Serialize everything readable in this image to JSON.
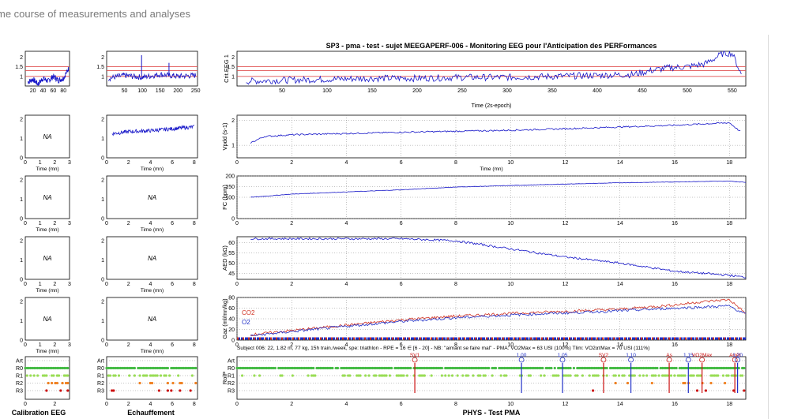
{
  "page_title": "me course of measurements and analyses",
  "figure_title": "SP3 - pma - test  -  sujet MEEGAPERF-006  -  Monitoring EEG pour l'Anticipation des PERFormances",
  "subject_line": "Subject 006: 22, 1.82 m, 77 kg, 15h train./week, spe: triathlon - RPE = 16 ∈ [6 - 20] - NB: \"aimant se faire mal\" - PMA: VO2Max = 63 USI (100%)  Tlim: VO2ατMax = 70 USI (111%)",
  "bottom_labels": {
    "left": "Calibration EEG",
    "middle": "Echauffement",
    "right": "PHYS - Test PMA"
  },
  "small_panels": {
    "na_label": "NA",
    "xlabel": "Time (mn)"
  },
  "colors": {
    "signal": "#1414c8",
    "threshold": "#e05050",
    "co2": "#d03020",
    "o2": "#2030c8",
    "r0": "#44bb44",
    "r1": "#99dd55",
    "r2": "#f08020",
    "r3": "#cc1111",
    "art": "#1a1a9a"
  },
  "chart_data": [
    {
      "id": "crit-calib",
      "type": "line",
      "x": [
        10,
        20,
        30,
        40,
        50,
        60,
        70,
        80,
        90
      ],
      "xticks": [
        20,
        40,
        60,
        80
      ],
      "xlim": [
        5,
        92
      ],
      "ylim": [
        0.5,
        2.3
      ],
      "yticks": [
        1,
        1.5,
        2
      ],
      "thresholds": [
        1.0,
        1.3,
        1.5
      ],
      "values": [
        0.7,
        0.85,
        0.6,
        0.9,
        0.75,
        1.0,
        0.8,
        0.9,
        1.4
      ]
    },
    {
      "id": "crit-warmup",
      "type": "line",
      "x": [
        5,
        50,
        100,
        150,
        200,
        250
      ],
      "xticks": [
        50,
        100,
        150,
        200,
        250
      ],
      "xlim": [
        0,
        255
      ],
      "ylim": [
        0.5,
        2.3
      ],
      "yticks": [
        1,
        1.5,
        2
      ],
      "thresholds": [
        1.0,
        1.3,
        1.5
      ],
      "peaks": [
        {
          "x": 98,
          "y": 2.1
        },
        {
          "x": 175,
          "y": 1.7
        }
      ],
      "values": [
        0.9,
        1.05,
        0.95,
        1.1,
        1.0,
        1.05
      ]
    },
    {
      "id": "crit-eeg",
      "type": "line",
      "xlabel": "Time (2s-epoch)",
      "ylabel": "Crit.EEG 1",
      "xticks": [
        50,
        100,
        150,
        200,
        250,
        300,
        350,
        400,
        450,
        500,
        550
      ],
      "xlim": [
        0,
        565
      ],
      "ylim": [
        0.5,
        2.3
      ],
      "yticks": [
        1,
        1.5,
        2
      ],
      "thresholds": [
        1.0,
        1.3,
        1.5
      ],
      "x": [
        10,
        50,
        100,
        150,
        200,
        250,
        300,
        350,
        400,
        440,
        460,
        480,
        500,
        520,
        540,
        550,
        560
      ],
      "values": [
        0.75,
        0.8,
        0.85,
        0.9,
        0.9,
        0.95,
        0.95,
        1.0,
        1.05,
        1.1,
        1.3,
        1.45,
        1.5,
        1.65,
        2.2,
        2.2,
        1.1
      ]
    },
    {
      "id": "vpdd",
      "type": "line",
      "ylabel": "Vpdd (s-1)",
      "xlabel": "Time (mn)",
      "xticks": [
        0,
        2,
        4,
        6,
        8,
        10,
        12,
        14,
        16,
        18
      ],
      "xlim": [
        0,
        18.6
      ],
      "ylim": [
        0.5,
        2.2
      ],
      "yticks": [
        1,
        2
      ],
      "x": [
        0.5,
        1,
        2,
        4,
        6,
        8,
        10,
        12,
        14,
        16,
        17,
        18,
        18.4
      ],
      "values": [
        1.1,
        1.35,
        1.42,
        1.47,
        1.52,
        1.56,
        1.6,
        1.66,
        1.73,
        1.8,
        1.85,
        1.9,
        1.55
      ]
    },
    {
      "id": "vpdd-warmup",
      "type": "line",
      "xlabel": "Time (mn)",
      "xticks": [
        0,
        2,
        4,
        6,
        8
      ],
      "xlim": [
        0,
        8.3
      ],
      "ylim": [
        0,
        2.2
      ],
      "yticks": [
        0,
        1,
        2
      ],
      "x": [
        0.5,
        2,
        4,
        6,
        8
      ],
      "values": [
        1.25,
        1.35,
        1.4,
        1.5,
        1.6
      ]
    },
    {
      "id": "fc",
      "type": "line",
      "ylabel": "FC (bpm)",
      "xticks": [
        0,
        2,
        4,
        6,
        8,
        10,
        12,
        14,
        16,
        18
      ],
      "xlim": [
        0,
        18.6
      ],
      "ylim": [
        0,
        200
      ],
      "yticks": [
        0,
        100,
        150,
        200
      ],
      "x": [
        0.5,
        2,
        4,
        6,
        8,
        10,
        12,
        14,
        16,
        18,
        18.6
      ],
      "values": [
        100,
        115,
        125,
        135,
        148,
        155,
        162,
        168,
        172,
        176,
        170
      ]
    },
    {
      "id": "aed",
      "type": "line",
      "ylabel": "AED (kΩ)",
      "xticks": [
        0,
        2,
        4,
        6,
        8,
        10,
        12,
        14,
        16,
        18
      ],
      "xlim": [
        0,
        18.6
      ],
      "ylim": [
        42,
        63
      ],
      "yticks": [
        45,
        50,
        55,
        60
      ],
      "x": [
        0.5,
        2,
        4,
        6,
        8,
        10,
        12,
        14,
        16,
        18,
        18.6
      ],
      "values": [
        62,
        62,
        62,
        62,
        61,
        57,
        53,
        50,
        46,
        44,
        43
      ]
    },
    {
      "id": "gaz",
      "type": "line",
      "ylabel": "Gaz (ml/mn/kg)",
      "xticks": [
        0,
        2,
        4,
        6,
        8,
        10,
        12,
        14,
        16,
        18
      ],
      "xlim": [
        0,
        18.6
      ],
      "ylim": [
        0,
        80
      ],
      "yticks": [
        0,
        20,
        40,
        60,
        80
      ],
      "x": [
        0.5,
        2,
        4,
        6,
        8,
        10,
        12,
        14,
        16,
        17,
        18,
        18.6
      ],
      "series": [
        {
          "name": "CO2",
          "values": [
            10,
            18,
            28,
            38,
            45,
            50,
            54,
            58,
            66,
            72,
            76,
            50
          ]
        },
        {
          "name": "O2",
          "values": [
            8,
            16,
            26,
            35,
            42,
            47,
            51,
            55,
            60,
            62,
            64,
            48
          ]
        }
      ]
    },
    {
      "id": "rolp-calib",
      "type": "scatter",
      "categories": [
        "Art",
        "R0",
        "R1",
        "R2",
        "R3"
      ],
      "xticks": [
        0,
        2
      ],
      "xlim": [
        0,
        3
      ]
    },
    {
      "id": "rolp-warmup",
      "type": "scatter",
      "categories": [
        "Art",
        "R0",
        "R1",
        "R2",
        "R3"
      ],
      "xticks": [
        0,
        2,
        4,
        6,
        8
      ],
      "xlim": [
        0,
        8.3
      ]
    },
    {
      "id": "rolp-test",
      "type": "scatter",
      "ylabel": "RolP",
      "categories": [
        "Art",
        "R0",
        "R1",
        "R2",
        "R3"
      ],
      "xticks": [
        0,
        2,
        4,
        6,
        8,
        10,
        12,
        14,
        16,
        18
      ],
      "xlim": [
        0,
        18.6
      ],
      "markers": [
        {
          "x": 6.5,
          "label": "SV1",
          "color": "#cc1111"
        },
        {
          "x": 10.4,
          "label": "1,00",
          "color": "#2030c8"
        },
        {
          "x": 11.9,
          "label": "1,05",
          "color": "#2030c8"
        },
        {
          "x": 13.4,
          "label": "SV2",
          "color": "#cc1111"
        },
        {
          "x": 14.4,
          "label": "1,10",
          "color": "#2030c8"
        },
        {
          "x": 15.8,
          "label": "As",
          "color": "#cc1111"
        },
        {
          "x": 16.5,
          "label": "1,15",
          "color": "#2030c8"
        },
        {
          "x": 17.0,
          "label": "VO2Max",
          "color": "#cc1111"
        },
        {
          "x": 18.2,
          "label": "Arrêt",
          "color": "#cc1111"
        },
        {
          "x": 18.3,
          "label": "1,20",
          "color": "#2030c8"
        }
      ]
    }
  ]
}
